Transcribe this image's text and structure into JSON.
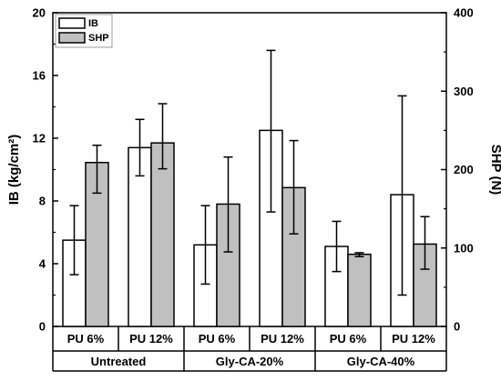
{
  "chart_data": {
    "type": "bar",
    "xlabel": "",
    "ylabel_left": "IB (kg/cm²)",
    "ylabel_right": "SHP (N)",
    "ylim_left": [
      0,
      20
    ],
    "ylim_right": [
      0,
      400
    ],
    "yticks_left": [
      "0",
      "4",
      "8",
      "12",
      "16",
      "20"
    ],
    "yticks_right": [
      "0",
      "100",
      "200",
      "300",
      "400"
    ],
    "categories": [
      "PU 6%",
      "PU 12%",
      "PU 6%",
      "PU 12%",
      "PU 6%",
      "PU 12%"
    ],
    "groups": [
      "Untreated",
      "Gly-CA-20%",
      "Gly-CA-40%"
    ],
    "legend_position": "top-left",
    "series": [
      {
        "name": "IB",
        "axis": "left",
        "color": "#ffffff",
        "values": [
          5.5,
          11.4,
          5.2,
          12.5,
          5.1,
          8.4
        ],
        "err_low": [
          3.3,
          9.6,
          2.7,
          7.3,
          3.5,
          2.0
        ],
        "err_high": [
          7.7,
          13.2,
          7.7,
          17.6,
          6.7,
          14.7
        ]
      },
      {
        "name": "SHP",
        "axis": "right",
        "color": "#c0c0c0",
        "values": [
          209,
          234,
          156,
          177,
          92,
          105
        ],
        "err_low": [
          170,
          201,
          95,
          118,
          89,
          73
        ],
        "err_high": [
          231,
          284,
          216,
          237,
          94,
          140
        ]
      }
    ]
  }
}
